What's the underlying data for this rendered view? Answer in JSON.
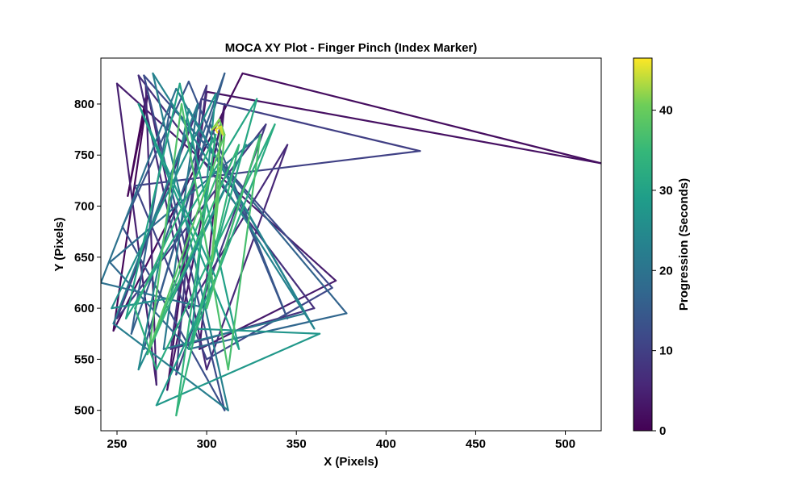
{
  "chart_data": {
    "type": "line",
    "title": "MOCA XY Plot - Finger Pinch (Index Marker)",
    "xlabel": "X (Pixels)",
    "ylabel": "Y (Pixels)",
    "xlim": [
      241,
      520
    ],
    "ylim": [
      480,
      845
    ],
    "xticks": [
      250,
      300,
      350,
      400,
      450,
      500
    ],
    "yticks": [
      500,
      550,
      600,
      650,
      700,
      750,
      800
    ],
    "grid": false,
    "colormap": "viridis",
    "colorbar": {
      "label": "Progression (Seconds)",
      "range": [
        0,
        46.5
      ],
      "ticks": [
        0,
        10,
        20,
        30,
        40
      ]
    },
    "series": [
      {
        "t": [
          0,
          0.4,
          0.8,
          1.2,
          1.6,
          2.0,
          2.4,
          2.8,
          3.2,
          3.6,
          4.0,
          4.4,
          4.8,
          5.2,
          5.6,
          6.0,
          6.4,
          6.8,
          7.2,
          7.6,
          8.0,
          8.4,
          8.8,
          9.2,
          9.6,
          10.0,
          10.5,
          11.0,
          11.5,
          12.0,
          12.5,
          13.0,
          13.5,
          14.0,
          14.5,
          15.0,
          15.5,
          16.0,
          16.5,
          17.0,
          17.5,
          18.0,
          18.5,
          19.0,
          19.5,
          20.0,
          20.5,
          21.0,
          21.5,
          22.0,
          22.5,
          23.0,
          23.5,
          24.0,
          24.5,
          25.0,
          25.5,
          26.0,
          26.5,
          27.0,
          27.5,
          28.0,
          28.5,
          29.0,
          29.5,
          30.0,
          30.5,
          31.0,
          31.5,
          32.0,
          32.5,
          33.0,
          33.5,
          34.0,
          34.5,
          35.0,
          35.5,
          36.0,
          36.5,
          37.0,
          37.5,
          38.0,
          38.5,
          39.0,
          39.5,
          40.0,
          41.0,
          42.0,
          43.0,
          44.0,
          45.0,
          46.0,
          46.5
        ],
        "x": [
          266,
          256,
          267,
          248,
          320,
          520,
          300,
          278,
          310,
          296,
          372,
          250,
          272,
          266,
          300,
          345,
          290,
          262,
          360,
          280,
          300,
          250,
          333,
          283,
          297,
          419,
          260,
          300,
          370,
          265,
          310,
          253,
          290,
          345,
          302,
          265,
          310,
          258,
          280,
          378,
          290,
          246,
          330,
          300,
          241,
          283,
          355,
          276,
          295,
          248,
          312,
          270,
          360,
          290,
          262,
          322,
          280,
          247,
          305,
          292,
          363,
          272,
          305,
          262,
          318,
          285,
          255,
          328,
          290,
          338,
          272,
          260,
          305,
          283,
          318,
          267,
          308,
          300,
          330,
          312,
          286,
          268,
          310,
          303,
          308,
          310,
          307,
          303,
          306,
          309,
          308,
          305,
          306
        ],
        "y": [
          806,
          710,
          808,
          578,
          830,
          742,
          812,
          520,
          800,
          560,
          627,
          820,
          525,
          820,
          540,
          760,
          600,
          828,
          600,
          560,
          818,
          590,
          780,
          535,
          805,
          754,
          720,
          550,
          620,
          828,
          500,
          680,
          822,
          590,
          780,
          560,
          830,
          575,
          800,
          595,
          560,
          645,
          770,
          600,
          625,
          815,
          595,
          560,
          800,
          585,
          500,
          830,
          580,
          795,
          540,
          760,
          610,
          600,
          810,
          580,
          575,
          505,
          630,
          800,
          560,
          820,
          590,
          805,
          560,
          780,
          540,
          600,
          770,
          495,
          760,
          555,
          740,
          600,
          770,
          540,
          800,
          560,
          770,
          646,
          780,
          770,
          785,
          775,
          780,
          770,
          778,
          775,
          772
        ]
      }
    ]
  }
}
